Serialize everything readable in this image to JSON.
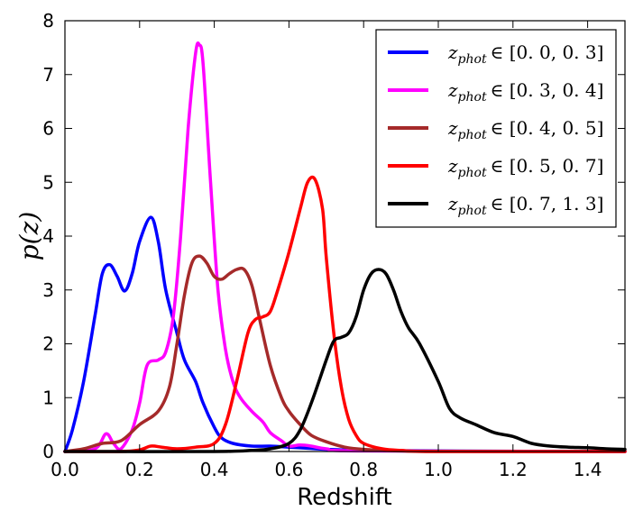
{
  "chart_data": {
    "type": "line",
    "title": "",
    "xlabel": "Redshift",
    "ylabel": "p(z)",
    "xlim": [
      0.0,
      1.5
    ],
    "ylim": [
      0,
      8
    ],
    "xticks": [
      "0.0",
      "0.2",
      "0.4",
      "0.6",
      "0.8",
      "1.0",
      "1.2",
      "1.4"
    ],
    "yticks": [
      "0",
      "1",
      "2",
      "3",
      "4",
      "5",
      "6",
      "7",
      "8"
    ],
    "grid": false,
    "legend_position": "top-right",
    "series": [
      {
        "name": "z_phot ∈ [0.0, 0.3]",
        "label": "z",
        "sub": "phot",
        "range": "∈ [0. 0,  0. 3]",
        "color": "#0000ff",
        "x": [
          0.0,
          0.02,
          0.05,
          0.08,
          0.1,
          0.12,
          0.14,
          0.16,
          0.18,
          0.2,
          0.23,
          0.25,
          0.27,
          0.3,
          0.32,
          0.35,
          0.37,
          0.4,
          0.42,
          0.45,
          0.5,
          0.55,
          0.6,
          0.65,
          0.7,
          0.8,
          1.0,
          1.5
        ],
        "y": [
          0.0,
          0.4,
          1.3,
          2.5,
          3.3,
          3.47,
          3.25,
          2.98,
          3.3,
          3.9,
          4.35,
          3.9,
          3.0,
          2.2,
          1.7,
          1.3,
          0.9,
          0.45,
          0.25,
          0.15,
          0.1,
          0.1,
          0.08,
          0.06,
          0.04,
          0.02,
          0.01,
          0.0
        ]
      },
      {
        "name": "z_phot ∈ [0.3, 0.4]",
        "label": "z",
        "sub": "phot",
        "range": "∈ [0. 3,  0. 4]",
        "color": "#ff00ff",
        "x": [
          0.0,
          0.08,
          0.11,
          0.13,
          0.15,
          0.18,
          0.2,
          0.22,
          0.25,
          0.27,
          0.29,
          0.31,
          0.33,
          0.35,
          0.36,
          0.37,
          0.39,
          0.41,
          0.43,
          0.45,
          0.47,
          0.5,
          0.53,
          0.55,
          0.58,
          0.6,
          0.63,
          0.66,
          0.7,
          0.8,
          1.5
        ],
        "y": [
          0.0,
          0.05,
          0.33,
          0.15,
          0.05,
          0.4,
          0.9,
          1.6,
          1.7,
          1.85,
          2.5,
          4.0,
          6.0,
          7.4,
          7.55,
          7.2,
          5.0,
          3.0,
          1.9,
          1.3,
          1.0,
          0.75,
          0.55,
          0.35,
          0.2,
          0.1,
          0.12,
          0.1,
          0.05,
          0.01,
          0.0
        ]
      },
      {
        "name": "z_phot ∈ [0.4, 0.5]",
        "label": "z",
        "sub": "phot",
        "range": "∈ [0. 4,  0. 5]",
        "color": "#a52a2a",
        "x": [
          0.0,
          0.05,
          0.1,
          0.15,
          0.2,
          0.25,
          0.28,
          0.3,
          0.32,
          0.34,
          0.36,
          0.38,
          0.4,
          0.42,
          0.44,
          0.46,
          0.48,
          0.5,
          0.52,
          0.55,
          0.58,
          0.6,
          0.63,
          0.66,
          0.7,
          0.75,
          0.8,
          0.9,
          1.0,
          1.5
        ],
        "y": [
          0.0,
          0.05,
          0.15,
          0.2,
          0.5,
          0.75,
          1.2,
          2.0,
          2.9,
          3.5,
          3.63,
          3.5,
          3.25,
          3.2,
          3.3,
          3.38,
          3.38,
          3.1,
          2.5,
          1.6,
          1.0,
          0.75,
          0.5,
          0.3,
          0.18,
          0.08,
          0.04,
          0.01,
          0.0,
          0.0
        ]
      },
      {
        "name": "z_phot ∈ [0.5, 0.7]",
        "label": "z",
        "sub": "phot",
        "range": "∈ [0. 5,  0. 7]",
        "color": "#ff0000",
        "x": [
          0.0,
          0.15,
          0.2,
          0.23,
          0.26,
          0.3,
          0.35,
          0.4,
          0.43,
          0.46,
          0.49,
          0.51,
          0.53,
          0.55,
          0.57,
          0.6,
          0.63,
          0.65,
          0.67,
          0.69,
          0.7,
          0.72,
          0.74,
          0.76,
          0.78,
          0.8,
          0.85,
          0.9,
          1.0,
          1.5
        ],
        "y": [
          0.0,
          0.0,
          0.03,
          0.1,
          0.08,
          0.05,
          0.08,
          0.15,
          0.5,
          1.3,
          2.2,
          2.45,
          2.5,
          2.6,
          3.0,
          3.7,
          4.5,
          5.0,
          5.05,
          4.5,
          3.6,
          2.2,
          1.2,
          0.6,
          0.3,
          0.15,
          0.05,
          0.02,
          0.0,
          0.0
        ]
      },
      {
        "name": "z_phot ∈ [0.7, 1.3]",
        "label": "z",
        "sub": "phot",
        "range": "∈ [0. 7,  1. 3]",
        "color": "#000000",
        "x": [
          0.0,
          0.4,
          0.5,
          0.55,
          0.6,
          0.63,
          0.66,
          0.7,
          0.72,
          0.74,
          0.76,
          0.78,
          0.8,
          0.82,
          0.84,
          0.86,
          0.88,
          0.9,
          0.92,
          0.95,
          1.0,
          1.03,
          1.06,
          1.1,
          1.15,
          1.2,
          1.25,
          1.3,
          1.35,
          1.4,
          1.45,
          1.5
        ],
        "y": [
          0.0,
          0.0,
          0.02,
          0.05,
          0.15,
          0.4,
          0.9,
          1.7,
          2.05,
          2.12,
          2.2,
          2.5,
          3.0,
          3.3,
          3.38,
          3.3,
          3.0,
          2.6,
          2.3,
          2.0,
          1.3,
          0.8,
          0.62,
          0.5,
          0.35,
          0.28,
          0.15,
          0.1,
          0.08,
          0.07,
          0.05,
          0.04
        ]
      }
    ]
  }
}
